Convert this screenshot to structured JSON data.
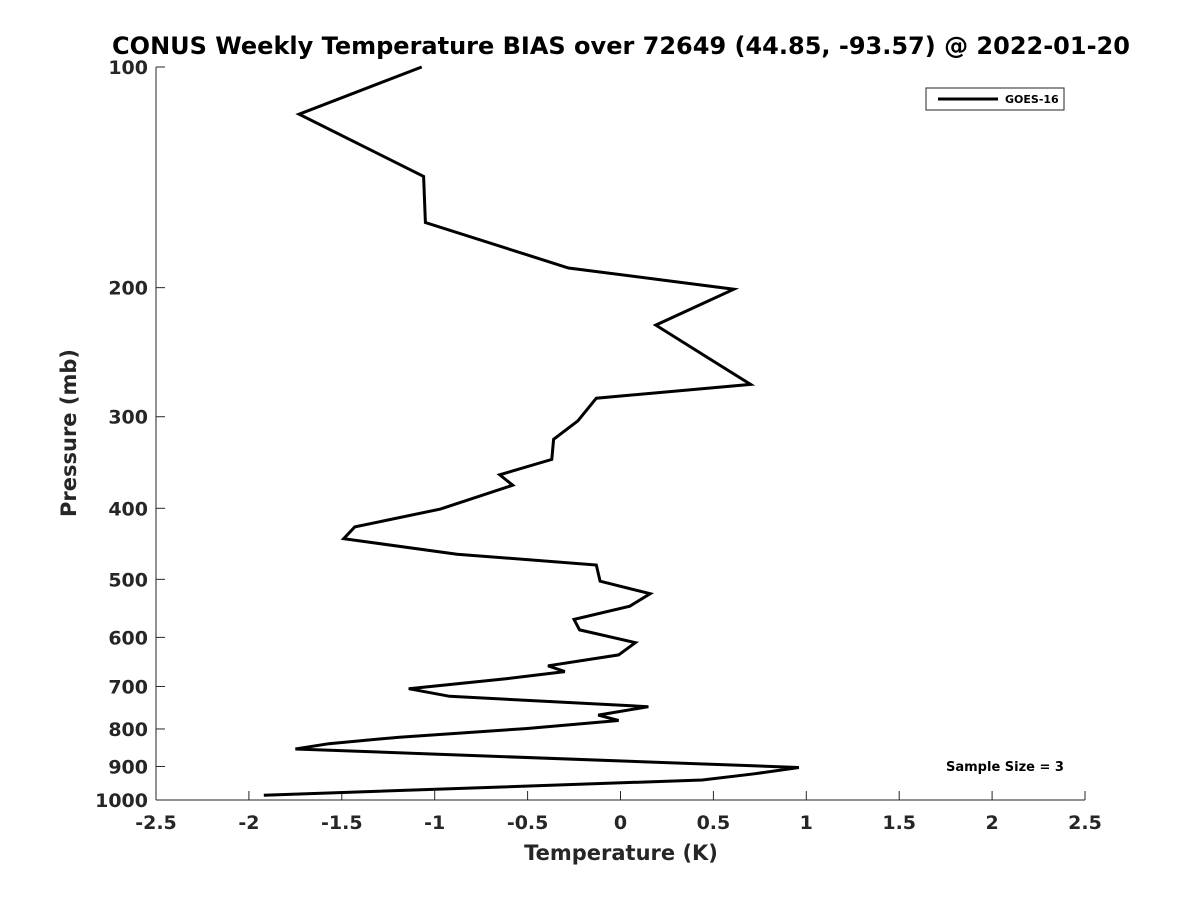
{
  "chart_data": {
    "type": "line",
    "title": "CONUS Weekly Temperature BIAS over 72649 (44.85, -93.57) @ 2022-01-20",
    "xlabel": "Temperature (K)",
    "ylabel": "Pressure (mb)",
    "xlim": [
      -2.5,
      2.5
    ],
    "ylim": [
      100,
      1000
    ],
    "y_scale": "log",
    "y_reversed": true,
    "x_ticks": [
      -2.5,
      -2,
      -1.5,
      -1,
      -0.5,
      0,
      0.5,
      1,
      1.5,
      2,
      2.5
    ],
    "x_tick_labels": [
      "-2.5",
      "-2",
      "-1.5",
      "-1",
      "-0.5",
      "0",
      "0.5",
      "1",
      "1.5",
      "2",
      "2.5"
    ],
    "y_ticks": [
      100,
      200,
      300,
      400,
      500,
      600,
      700,
      800,
      900,
      1000
    ],
    "y_tick_labels": [
      "100",
      "200",
      "300",
      "400",
      "500",
      "600",
      "700",
      "800",
      "900",
      "1000"
    ],
    "grid": false,
    "legend_position": "top-right",
    "series": [
      {
        "name": "GOES-16",
        "color": "#000000",
        "points": [
          {
            "t": -1.07,
            "p": 100
          },
          {
            "t": -1.73,
            "p": 116
          },
          {
            "t": -1.06,
            "p": 141
          },
          {
            "t": -1.05,
            "p": 163
          },
          {
            "t": -0.28,
            "p": 188
          },
          {
            "t": 0.61,
            "p": 201
          },
          {
            "t": 0.19,
            "p": 225
          },
          {
            "t": 0.49,
            "p": 251
          },
          {
            "t": 0.7,
            "p": 271
          },
          {
            "t": -0.13,
            "p": 283
          },
          {
            "t": -0.23,
            "p": 304
          },
          {
            "t": -0.36,
            "p": 322
          },
          {
            "t": -0.37,
            "p": 343
          },
          {
            "t": -0.65,
            "p": 360
          },
          {
            "t": -0.58,
            "p": 372
          },
          {
            "t": -0.97,
            "p": 401
          },
          {
            "t": -1.43,
            "p": 424
          },
          {
            "t": -1.49,
            "p": 440
          },
          {
            "t": -0.88,
            "p": 462
          },
          {
            "t": -0.13,
            "p": 478
          },
          {
            "t": -0.11,
            "p": 503
          },
          {
            "t": 0.16,
            "p": 523
          },
          {
            "t": 0.05,
            "p": 544
          },
          {
            "t": -0.25,
            "p": 567
          },
          {
            "t": -0.22,
            "p": 586
          },
          {
            "t": 0.08,
            "p": 610
          },
          {
            "t": -0.01,
            "p": 634
          },
          {
            "t": -0.39,
            "p": 656
          },
          {
            "t": -0.3,
            "p": 668
          },
          {
            "t": -0.61,
            "p": 683
          },
          {
            "t": -1.14,
            "p": 705
          },
          {
            "t": -0.92,
            "p": 722
          },
          {
            "t": 0.15,
            "p": 746
          },
          {
            "t": -0.12,
            "p": 766
          },
          {
            "t": -0.01,
            "p": 779
          },
          {
            "t": -0.51,
            "p": 799
          },
          {
            "t": -1.19,
            "p": 821
          },
          {
            "t": -1.57,
            "p": 838
          },
          {
            "t": -1.75,
            "p": 852
          },
          {
            "t": 0.96,
            "p": 903
          },
          {
            "t": 0.72,
            "p": 921
          },
          {
            "t": 0.44,
            "p": 939
          },
          {
            "t": -1.92,
            "p": 985
          }
        ]
      }
    ],
    "annotations": [
      {
        "text": "Sample Size = 3",
        "position": "bottom-right"
      }
    ]
  }
}
